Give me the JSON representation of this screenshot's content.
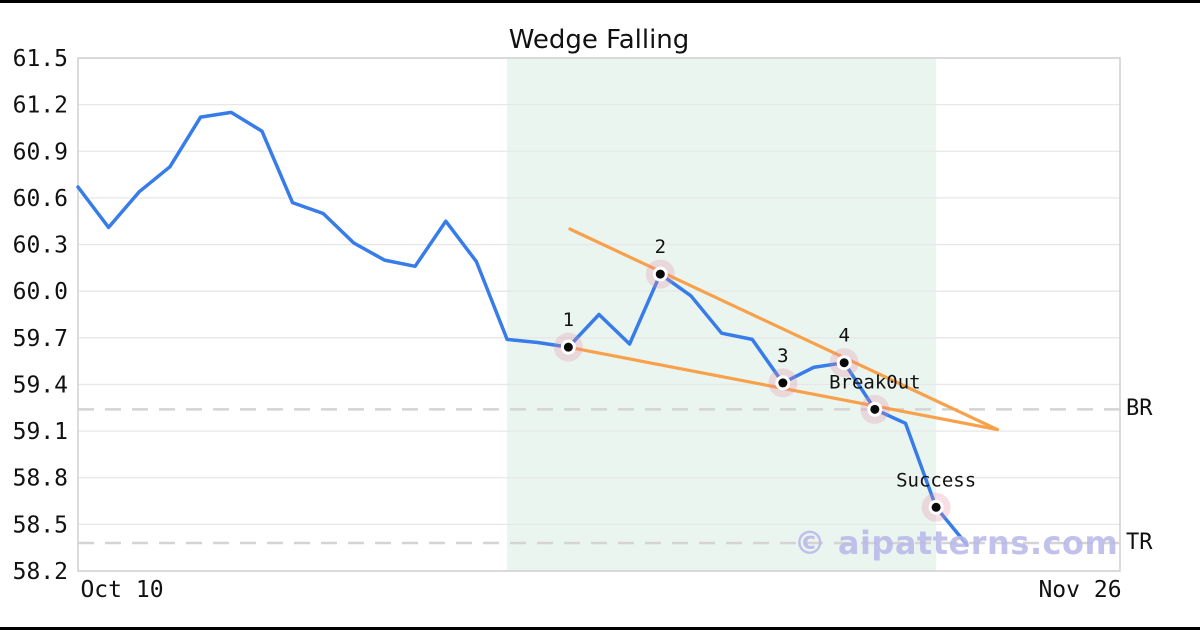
{
  "chart_data": {
    "type": "line",
    "title": "Wedge Falling",
    "pattern_name": "Wedge Falling",
    "watermark": "© aipatterns.com",
    "series": [
      {
        "name": "price",
        "x_note": "index",
        "y": [
          60.67,
          60.41,
          60.64,
          60.8,
          61.12,
          61.15,
          61.03,
          60.57,
          60.5,
          60.31,
          60.2,
          60.16,
          60.45,
          60.19,
          59.69,
          59.67,
          59.64,
          59.85,
          59.66,
          60.11,
          59.97,
          59.73,
          59.69,
          59.41,
          59.51,
          59.54,
          59.24,
          59.15,
          58.61,
          58.37
        ]
      }
    ],
    "ylim": [
      58.2,
      61.5
    ],
    "yticks": [
      58.2,
      58.5,
      58.8,
      59.1,
      59.4,
      59.7,
      60.0,
      60.3,
      60.6,
      60.9,
      61.2,
      61.5
    ],
    "xlim": [
      0,
      34
    ],
    "xticks": [
      {
        "label": "Oct 10",
        "position": 1.43
      },
      {
        "label": "Nov 26",
        "position": 32.7
      }
    ],
    "grid": "horizontal",
    "legend": "none",
    "markers": [
      {
        "label": "1",
        "index": 16,
        "value": 59.64
      },
      {
        "label": "2",
        "index": 19,
        "value": 60.11
      },
      {
        "label": "3",
        "index": 23,
        "value": 59.41
      },
      {
        "label": "4",
        "index": 25,
        "value": 59.54
      },
      {
        "label": "Break0ut",
        "index": 26,
        "value": 59.24
      },
      {
        "label": "Success",
        "index": 28,
        "value": 58.61
      }
    ],
    "trendlines": [
      {
        "name": "upper",
        "x1": 16.05,
        "y1": 60.4,
        "x2": 30,
        "y2": 59.11
      },
      {
        "name": "lower",
        "x1": 16.0,
        "y1": 59.64,
        "x2": 30,
        "y2": 59.11
      }
    ],
    "levels": [
      {
        "label": "BR",
        "value": 59.24
      },
      {
        "label": "TR",
        "value": 58.38
      }
    ],
    "shaded_region": {
      "x1": 14,
      "x2": 28
    },
    "colors": {
      "price_line": "#377CE8",
      "trendline": "#F9A04A",
      "shaded_region": "#EAF5F0",
      "gridline": "#E7E7E7",
      "spine": "#CFCFCF",
      "dashed_level": "#D4D4D4",
      "marker_dot": "#0A0A0A",
      "marker_ring": "#FFFFFF",
      "marker_halo": "rgba(231,139,166,0.28)",
      "text": "#111111",
      "watermark": "#B7B7E8"
    }
  }
}
